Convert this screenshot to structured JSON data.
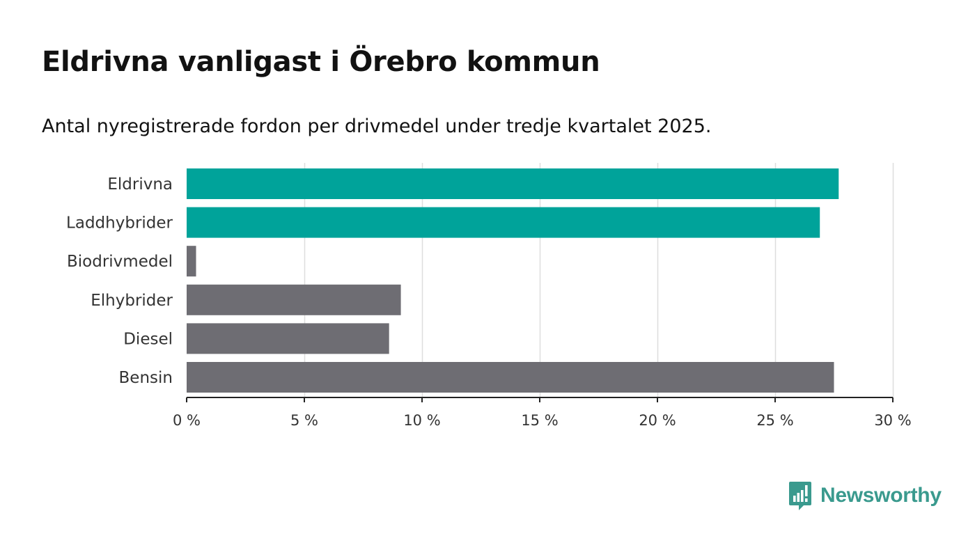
{
  "chart_data": {
    "type": "bar",
    "orientation": "horizontal",
    "title": "Eldrivna vanligast i Örebro kommun",
    "subtitle": "Antal nyregistrerade fordon per drivmedel under tredje kvartalet 2025.",
    "categories": [
      "Eldrivna",
      "Laddhybrider",
      "Biodrivmedel",
      "Elhybrider",
      "Diesel",
      "Bensin"
    ],
    "values": [
      27.7,
      26.9,
      0.4,
      9.1,
      8.6,
      27.5
    ],
    "highlighted": [
      true,
      true,
      false,
      false,
      false,
      false
    ],
    "xlim": [
      0,
      30
    ],
    "xticks": [
      0,
      5,
      10,
      15,
      20,
      25,
      30
    ],
    "xtick_labels": [
      "0 %",
      "5 %",
      "10 %",
      "15 %",
      "20 %",
      "25 %",
      "30 %"
    ],
    "unit": "%",
    "grid": true,
    "xlabel": "",
    "ylabel": ""
  },
  "colors": {
    "highlight": "#00a39a",
    "default": "#6e6d73",
    "grid": "#dedede",
    "axis": "#222222",
    "brand": "#3a9a8e"
  },
  "brand": {
    "name": "Newsworthy",
    "icon": "newsworthy-logo-icon"
  }
}
